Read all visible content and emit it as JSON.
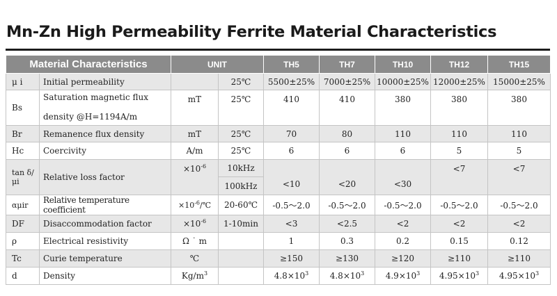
{
  "title": "Mn-Zn High Permeability Ferrite Material Characteristics",
  "header": {
    "material": "Material Characteristics",
    "unit": "UNIT",
    "grades": [
      "TH5",
      "TH7",
      "TH10",
      "TH12",
      "TH15"
    ]
  },
  "rows": [
    {
      "symbol": "μ i",
      "name": "Initial  permeability",
      "unit": "",
      "cond": "25℃",
      "values": [
        "5500±25%",
        "7000±25%",
        "10000±25%",
        "12000±25%",
        "15000±25%"
      ]
    },
    {
      "symbol": "Bs",
      "name_line1": "Saturation magnetic flux",
      "name_line2": "density @H=1194A/m",
      "unit": "mT",
      "cond": "25℃",
      "values": [
        "410",
        "410",
        "380",
        "380",
        "380"
      ]
    },
    {
      "symbol": "Br",
      "name": "Remanence flux density",
      "unit": "mT",
      "cond": "25℃",
      "values": [
        "70",
        "80",
        "110",
        "110",
        "110"
      ]
    },
    {
      "symbol": "Hc",
      "name": "Coercivity",
      "unit": "A/m",
      "cond": "25℃",
      "values": [
        "6",
        "6",
        "6",
        "5",
        "5"
      ]
    },
    {
      "symbol": "tan δ/μi",
      "name": "Relative loss factor",
      "unit_base": "×10",
      "unit_exp": "-6",
      "cond_1": "10kHz",
      "cond_2": "100kHz",
      "values": [
        "<10",
        "<20",
        "<30",
        "<7",
        "<7"
      ]
    },
    {
      "symbol": "αμir",
      "name": "Relative temperature coefficient",
      "unit_base": "×10",
      "unit_exp": "-6",
      "unit_tail": "/℃",
      "cond": "20-60℃",
      "values": [
        "-0.5～2.0",
        "-0.5～2.0",
        "-0.5～2.0",
        "-0.5～2.0",
        "-0.5～2.0"
      ]
    },
    {
      "symbol": "DF",
      "name": "Disaccommodation factor",
      "unit_base": "×10",
      "unit_exp": "-6",
      "cond": "1-10min",
      "values": [
        "<3",
        "<2.5",
        "<2",
        "<2",
        "<2"
      ]
    },
    {
      "symbol": "ρ",
      "name": "Electrical resistivity",
      "unit": "Ω ˙ m",
      "cond": "",
      "values": [
        "1",
        "0.3",
        "0.2",
        "0.15",
        "0.12"
      ]
    },
    {
      "symbol": "Tc",
      "name": "Curie temperature",
      "unit": "℃",
      "cond": "",
      "values": [
        "≥150",
        "≥130",
        "≥120",
        "≥110",
        "≥110"
      ]
    },
    {
      "symbol": "d",
      "name": "Density",
      "unit_base": "Kg/m",
      "unit_exp": "3",
      "cond": "",
      "values_base": [
        "4.8×10",
        "4.8×10",
        "4.9×10",
        "4.95×10",
        "4.95×10"
      ],
      "values_exp": "3"
    }
  ]
}
